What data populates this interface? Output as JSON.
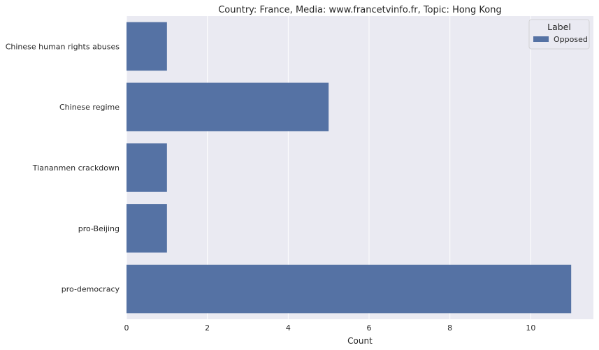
{
  "chart_data": {
    "type": "bar",
    "orientation": "horizontal",
    "title": "Country: France, Media: www.francetvinfo.fr, Topic: Hong Kong",
    "xlabel": "Count",
    "ylabel": "",
    "categories": [
      "Chinese human rights abuses",
      "Chinese regime",
      "Tiananmen crackdown",
      "pro-Beijing",
      "pro-democracy"
    ],
    "series": [
      {
        "name": "Opposed",
        "values": [
          1,
          5,
          1,
          1,
          11
        ],
        "color": "#5572a4"
      }
    ],
    "xticks": [
      "0",
      "2",
      "4",
      "6",
      "8",
      "10"
    ],
    "xlim": [
      0,
      11.55
    ],
    "grid": true,
    "legend": {
      "title": "Label",
      "placement": "top-right"
    },
    "background": "#eaeaf2",
    "grid_color": "#ffffff"
  }
}
